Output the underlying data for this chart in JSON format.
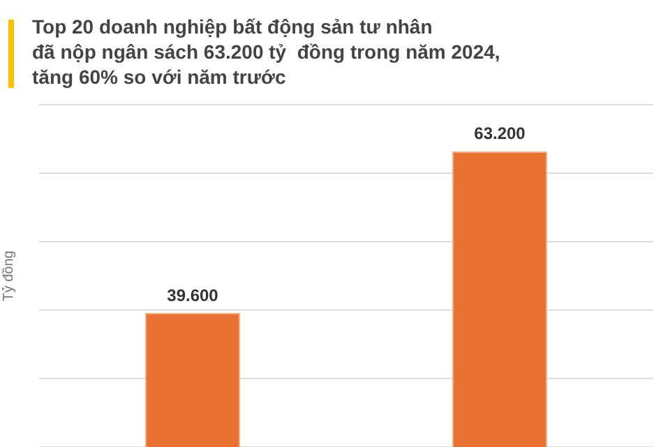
{
  "chart_data": {
    "type": "bar",
    "title": "Top 20 doanh nghiệp bất động sản tư nhân\nđã nộp ngân sách 63.200 tỷ  đồng trong năm 2024,\ntăng 60% so với năm trước",
    "ylabel": "Tỷ đồng",
    "categories": [
      null,
      null
    ],
    "values": [
      39600,
      63200
    ],
    "value_labels": [
      "39.600",
      "63.200"
    ],
    "color": "#e97132",
    "ylim": [
      20000,
      70000
    ],
    "yticks": [
      {
        "value": 20000,
        "label": null
      },
      {
        "value": 30000,
        "label": null
      },
      {
        "value": 40000,
        "label": null
      },
      {
        "value": 50000,
        "label": null
      },
      {
        "value": 60000,
        "label": null
      },
      {
        "value": 70000,
        "label": null
      }
    ],
    "grid": "y",
    "legend": false
  }
}
